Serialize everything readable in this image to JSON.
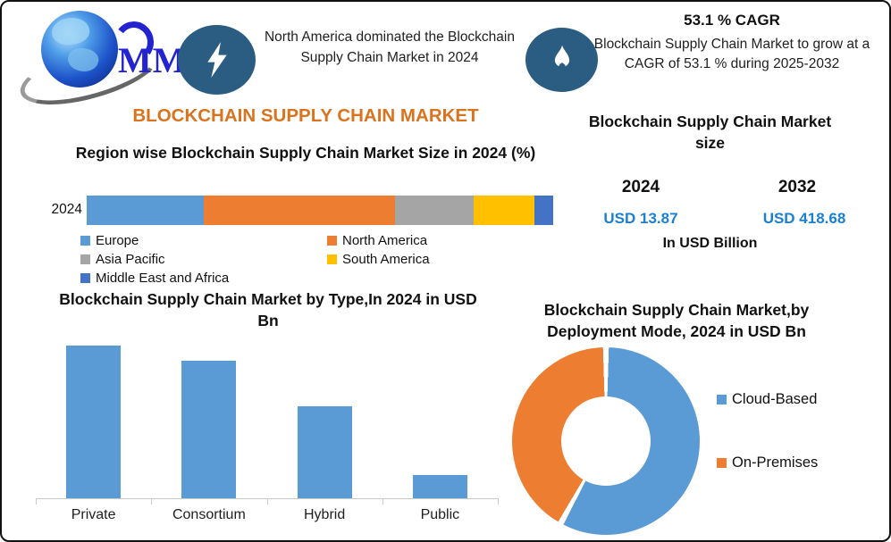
{
  "colors": {
    "accent_orange": "#D9731E",
    "badge_blue": "#2B5C82",
    "value_blue": "#1B80CF",
    "bar_blue": "#5B9BD5"
  },
  "header": {
    "logo_text": "MMR",
    "logo_icon": "globe-icon",
    "highlight_icon": "lightning-bolt-icon",
    "highlight_text": "North America dominated the Blockchain Supply Chain Market in 2024",
    "cagr_icon": "flame-icon",
    "cagr_title": "53.1 % CAGR",
    "cagr_text": "Blockchain Supply Chain Market to grow at a CAGR of 53.1 % during 2025-2032"
  },
  "main_title": "BLOCKCHAIN SUPPLY CHAIN MARKET",
  "market_size_panel": {
    "title": "Blockchain Supply Chain Market size",
    "col_2024": {
      "year": "2024",
      "value": "USD 13.87"
    },
    "col_2032": {
      "year": "2032",
      "value": "USD 418.68"
    },
    "unit_note": "In USD Billion"
  },
  "chart_data": [
    {
      "type": "bar",
      "subtype": "stacked-horizontal",
      "title": "Region wise Blockchain Supply Chain Market Size in 2024 (%)",
      "categories": [
        "2024"
      ],
      "series": [
        {
          "name": "Europe",
          "values": [
            25
          ],
          "color": "#5B9BD5"
        },
        {
          "name": "North America",
          "values": [
            41
          ],
          "color": "#ED7D31"
        },
        {
          "name": "Asia Pacific",
          "values": [
            17
          ],
          "color": "#A5A5A5"
        },
        {
          "name": "South America",
          "values": [
            13
          ],
          "color": "#FFC000"
        },
        {
          "name": "Middle East and Africa",
          "values": [
            4
          ],
          "color": "#4472C4"
        }
      ],
      "unit": "%",
      "xlim": [
        0,
        100
      ],
      "legend_position": "below"
    },
    {
      "type": "bar",
      "title": "Blockchain Supply Chain Market by Type,In 2024 in USD Bn",
      "categories": [
        "Private",
        "Consortium",
        "Hybrid",
        "Public"
      ],
      "values": [
        100,
        90,
        60,
        15
      ],
      "value_scale": "percent of tallest bar (value axis not shown in image)",
      "bar_color": "#5B9BD5",
      "grid": false
    },
    {
      "type": "pie",
      "subtype": "donut",
      "title": "Blockchain Supply Chain Market,by Deployment Mode, 2024 in USD Bn",
      "slices": [
        {
          "label": "Cloud-Based",
          "value": 58,
          "color": "#5B9BD5"
        },
        {
          "label": "On-Premises",
          "value": 42,
          "color": "#ED7D31"
        }
      ],
      "unit": "% of ring (estimated from slice angles)",
      "legend_position": "right"
    }
  ]
}
